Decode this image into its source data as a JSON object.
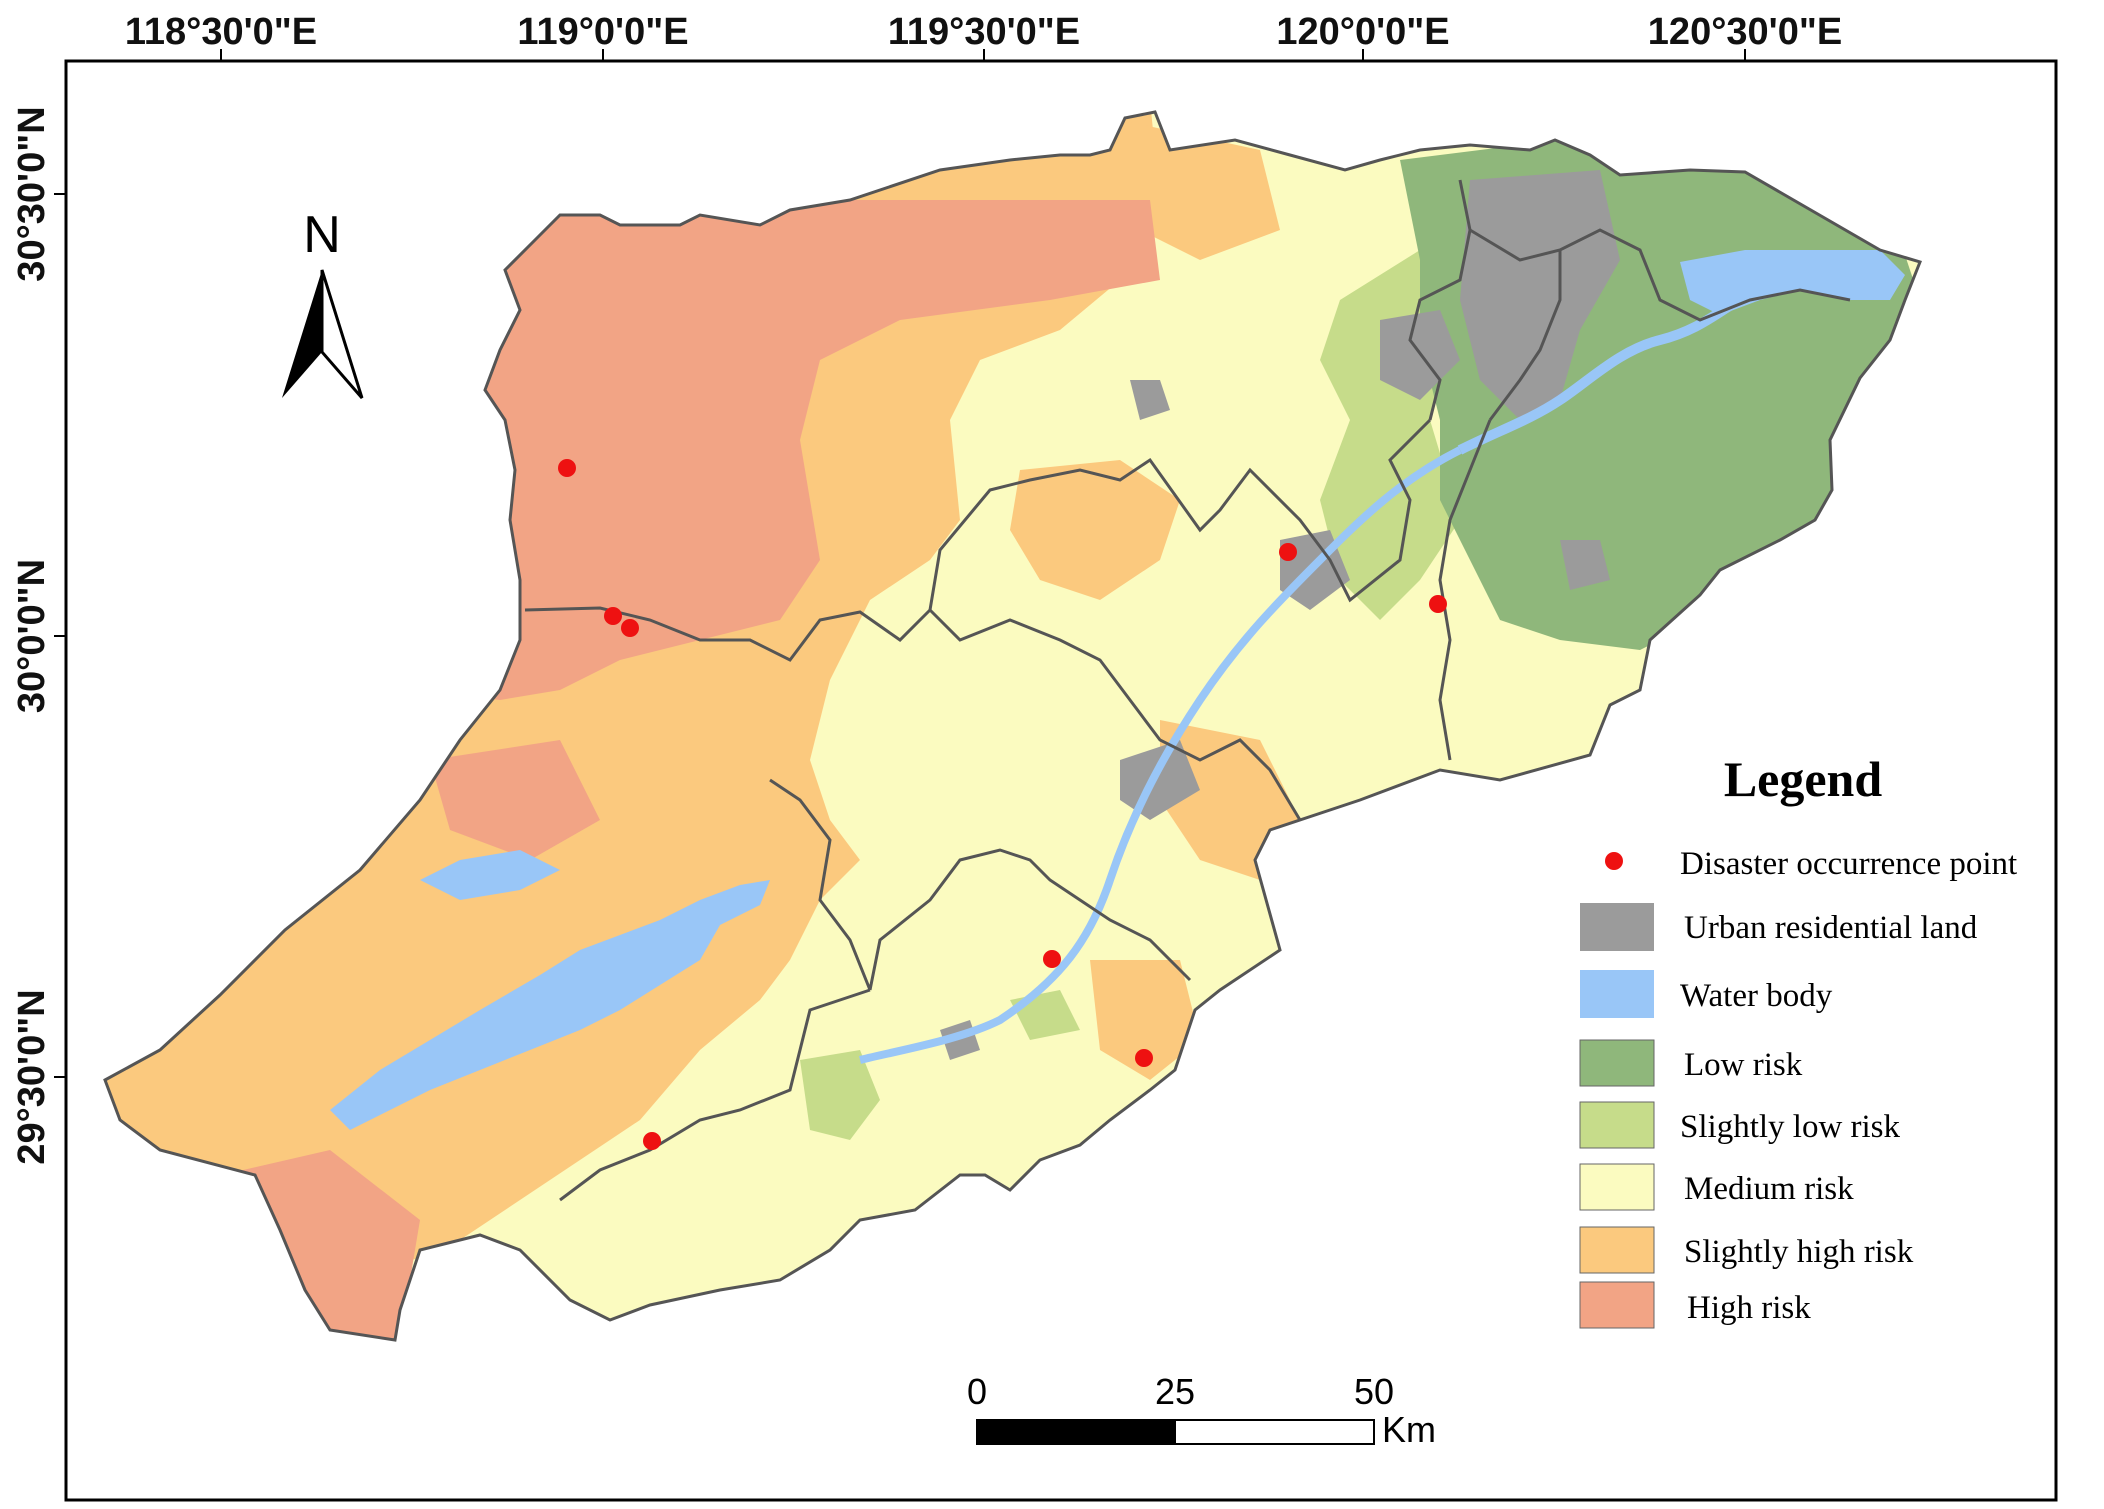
{
  "map": {
    "longitude_labels": [
      "118°30'0\"E",
      "119°0'0\"E",
      "119°30'0\"E",
      "120°0'0\"E",
      "120°30'0\"E"
    ],
    "latitude_labels": [
      "30°30'0\"N",
      "30°0'0\"N",
      "29°30'0\"N"
    ],
    "north_arrow_label": "N"
  },
  "legend": {
    "title": "Legend",
    "items": [
      {
        "label": "Disaster occurrence point",
        "color": "#ee1111",
        "kind": "point"
      },
      {
        "label": "Urban residential land",
        "color": "#9b9b9b",
        "kind": "box"
      },
      {
        "label": "Water body",
        "color": "#99c6f7",
        "kind": "box"
      },
      {
        "label": "Low risk",
        "color": "#8fb77b",
        "kind": "box"
      },
      {
        "label": "Slightly low risk",
        "color": "#c6dc8a",
        "kind": "box"
      },
      {
        "label": "Medium risk",
        "color": "#fbfbc0",
        "kind": "box"
      },
      {
        "label": "Slightly high risk",
        "color": "#fbc97e",
        "kind": "box"
      },
      {
        "label": "High risk",
        "color": "#f2a485",
        "kind": "box"
      }
    ]
  },
  "scale_bar": {
    "ticks": [
      "0",
      "25",
      "50"
    ],
    "unit": "Km"
  },
  "colors": {
    "high_risk": "#f2a485",
    "slightly_high_risk": "#fbc97e",
    "medium_risk": "#fbfbc0",
    "slightly_low_risk": "#c6dc8a",
    "low_risk": "#8fb77b",
    "urban": "#9b9b9b",
    "water": "#99c6f7",
    "point": "#ee1111",
    "boundary": "#555555"
  },
  "disaster_points_count": 9
}
